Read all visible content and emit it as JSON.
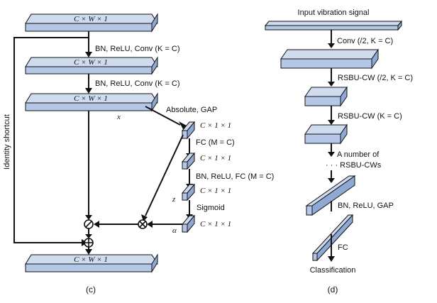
{
  "panel_c": {
    "caption": "(c)",
    "block_label": "C × W × 1",
    "shortcut_label": "Identity shortcut",
    "op1_label": "BN, ReLU, Conv (K = C)",
    "op2_label": "BN, ReLU, Conv (K = C)",
    "x_label": "x",
    "abs_gap_label": "Absolute, GAP",
    "small_block_label": "C × 1 × 1",
    "fc_label": "FC (M = C)",
    "bn_relu_fc_label": "BN, ReLU, FC (M = C)",
    "z_label": "z",
    "sigmoid_label": "Sigmoid",
    "alpha_label": "α"
  },
  "panel_d": {
    "caption": "(d)",
    "input_label": "Input vibration signal",
    "conv_label": "Conv (/2, K = C)",
    "rsbu1_label": "RSBU-CW (/2, K = C)",
    "rsbu2_label": "RSBU-CW (K = C)",
    "number_of_label": "A number of",
    "rsbu_cws_label": "· · · RSBU-CWs",
    "bn_relu_gap_label": "BN, ReLU, GAP",
    "fc_label": "FC",
    "output_label": "Classification"
  }
}
